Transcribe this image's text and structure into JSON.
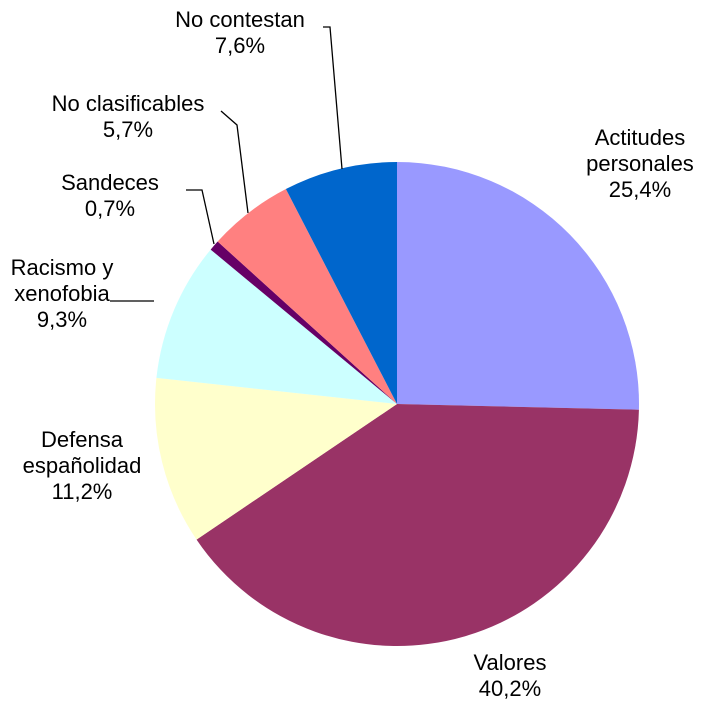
{
  "chart_data": {
    "type": "pie",
    "title": "",
    "legend": "none",
    "slices": [
      {
        "name": "Actitudes personales",
        "label_lines": [
          "Actitudes",
          "personales"
        ],
        "value": 25.4,
        "value_label": "25,4%",
        "color": "#9999FF"
      },
      {
        "name": "Valores",
        "label_lines": [
          "Valores"
        ],
        "value": 40.2,
        "value_label": "40,2%",
        "color": "#993366"
      },
      {
        "name": "Defensa españolidad",
        "label_lines": [
          "Defensa",
          "españolidad"
        ],
        "value": 11.2,
        "value_label": "11,2%",
        "color": "#FFFFCC"
      },
      {
        "name": "Racismo y xenofobia",
        "label_lines": [
          "Racismo y",
          "xenofobia"
        ],
        "value": 9.3,
        "value_label": "9,3%",
        "color": "#CCFFFF"
      },
      {
        "name": "Sandeces",
        "label_lines": [
          "Sandeces"
        ],
        "value": 0.7,
        "value_label": "0,7%",
        "color": "#660066"
      },
      {
        "name": "No clasificables",
        "label_lines": [
          "No clasificables"
        ],
        "value": 5.7,
        "value_label": "5,7%",
        "color": "#FF8080"
      },
      {
        "name": "No contestan",
        "label_lines": [
          "No contestan"
        ],
        "value": 7.6,
        "value_label": "7,6%",
        "color": "#0066CC"
      }
    ]
  }
}
